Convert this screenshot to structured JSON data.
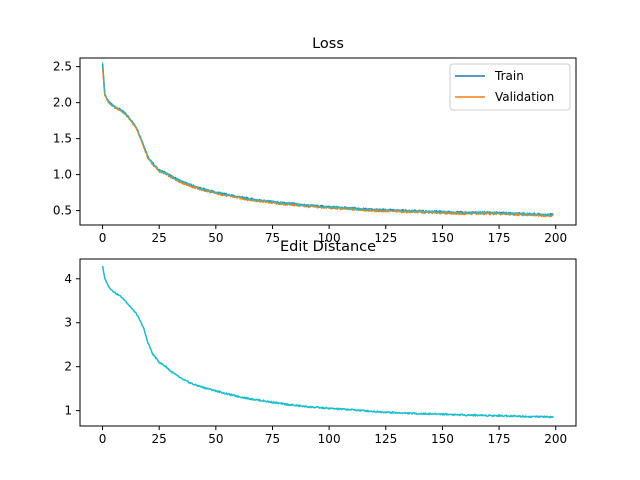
{
  "chart_data": [
    {
      "type": "line",
      "title": "Loss",
      "xlabel": "",
      "ylabel": "",
      "xlim": [
        -9.95,
        208.95
      ],
      "ylim": [
        0.3,
        2.62
      ],
      "xticks": [
        "0",
        "25",
        "50",
        "75",
        "100",
        "125",
        "150",
        "175",
        "200"
      ],
      "yticks": [
        "0.5",
        "1.0",
        "1.5",
        "2.0",
        "2.5"
      ],
      "grid": false,
      "legend": "top-right",
      "series": [
        {
          "name": "Train",
          "color": "#1f77b4",
          "x": [
            0,
            1,
            2,
            3,
            5,
            8,
            10,
            12,
            15,
            18,
            20,
            23,
            25,
            28,
            30,
            35,
            40,
            45,
            50,
            55,
            60,
            65,
            70,
            75,
            80,
            85,
            90,
            95,
            100,
            110,
            120,
            130,
            140,
            150,
            160,
            170,
            180,
            190,
            199
          ],
          "y": [
            2.55,
            2.12,
            2.05,
            2.0,
            1.95,
            1.9,
            1.85,
            1.78,
            1.65,
            1.42,
            1.25,
            1.12,
            1.06,
            1.02,
            0.98,
            0.9,
            0.84,
            0.79,
            0.75,
            0.72,
            0.69,
            0.66,
            0.64,
            0.62,
            0.6,
            0.59,
            0.57,
            0.56,
            0.55,
            0.53,
            0.51,
            0.5,
            0.49,
            0.48,
            0.47,
            0.47,
            0.46,
            0.45,
            0.44
          ]
        },
        {
          "name": "Validation",
          "color": "#ff7f0e",
          "x": [
            0,
            1,
            2,
            3,
            5,
            8,
            10,
            12,
            15,
            18,
            20,
            23,
            25,
            28,
            30,
            35,
            40,
            45,
            50,
            55,
            60,
            65,
            70,
            75,
            80,
            85,
            90,
            95,
            100,
            110,
            120,
            130,
            140,
            150,
            160,
            170,
            180,
            190,
            199
          ],
          "y": [
            2.5,
            2.1,
            2.04,
            1.99,
            1.94,
            1.89,
            1.84,
            1.77,
            1.64,
            1.4,
            1.23,
            1.11,
            1.05,
            1.01,
            0.97,
            0.89,
            0.83,
            0.78,
            0.74,
            0.71,
            0.68,
            0.65,
            0.63,
            0.61,
            0.59,
            0.58,
            0.56,
            0.55,
            0.54,
            0.52,
            0.5,
            0.49,
            0.48,
            0.47,
            0.46,
            0.46,
            0.45,
            0.44,
            0.43
          ]
        }
      ]
    },
    {
      "type": "line",
      "title": "Edit Distance",
      "xlabel": "",
      "ylabel": "",
      "xlim": [
        -9.95,
        208.95
      ],
      "ylim": [
        0.65,
        4.45
      ],
      "xticks": [
        "0",
        "25",
        "50",
        "75",
        "100",
        "125",
        "150",
        "175",
        "200"
      ],
      "yticks": [
        "1",
        "2",
        "3",
        "4"
      ],
      "grid": false,
      "legend": "none",
      "series": [
        {
          "name": "",
          "color": "#17becf",
          "x": [
            0,
            1,
            3,
            5,
            8,
            10,
            12,
            15,
            18,
            20,
            22,
            25,
            28,
            30,
            35,
            40,
            45,
            50,
            55,
            60,
            65,
            70,
            75,
            80,
            85,
            90,
            95,
            100,
            110,
            120,
            130,
            140,
            150,
            160,
            170,
            180,
            190,
            195,
            199
          ],
          "y": [
            4.3,
            4.0,
            3.8,
            3.7,
            3.6,
            3.5,
            3.38,
            3.2,
            2.9,
            2.55,
            2.3,
            2.1,
            2.0,
            1.9,
            1.72,
            1.6,
            1.52,
            1.45,
            1.38,
            1.32,
            1.27,
            1.23,
            1.19,
            1.15,
            1.12,
            1.09,
            1.07,
            1.05,
            1.02,
            0.98,
            0.95,
            0.93,
            0.92,
            0.9,
            0.89,
            0.88,
            0.86,
            0.86,
            0.85
          ]
        }
      ]
    }
  ]
}
